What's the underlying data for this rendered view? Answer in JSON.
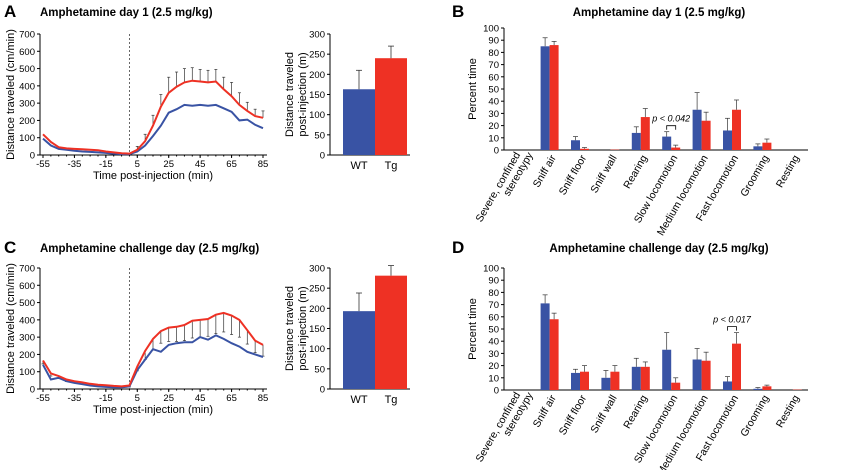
{
  "panels": {
    "A": {
      "label": "A",
      "title": "Amphetamine day 1 (2.5 mg/kg)"
    },
    "B": {
      "label": "B",
      "title": "Amphetamine day 1 (2.5 mg/kg)"
    },
    "C": {
      "label": "C",
      "title": "Amphetamine challenge day (2.5 mg/kg)"
    },
    "D": {
      "label": "D",
      "title": "Amphetamine challenge day (2.5 mg/kg)"
    }
  },
  "colors": {
    "wt": "#3953A4",
    "tg": "#EE3124",
    "axis": "#000000",
    "error": "#333333"
  },
  "chart_data": [
    {
      "id": "A-line",
      "type": "line",
      "xlabel": "Time post-injection (min)",
      "ylabel": "Distance traveled (cm/min)",
      "xlim": [
        -55,
        85
      ],
      "ylim": [
        0,
        700
      ],
      "xticks": [
        -55,
        -35,
        -15,
        5,
        25,
        45,
        65,
        85
      ],
      "xtick_labels": [
        "-55",
        "-35",
        "-15",
        "5",
        "25",
        "45",
        "65",
        "85"
      ],
      "yticks": [
        0,
        100,
        200,
        300,
        400,
        500,
        600,
        700
      ],
      "injection_x": 0,
      "x": [
        -55,
        -50,
        -45,
        -40,
        -35,
        -30,
        -25,
        -20,
        -15,
        -10,
        -5,
        0,
        5,
        10,
        15,
        20,
        25,
        30,
        35,
        40,
        45,
        50,
        55,
        60,
        65,
        70,
        75,
        80,
        85
      ],
      "series": [
        {
          "name": "WT",
          "values": [
            95,
            55,
            35,
            30,
            25,
            20,
            18,
            15,
            12,
            8,
            5,
            5,
            20,
            55,
            110,
            170,
            245,
            265,
            290,
            285,
            290,
            285,
            290,
            270,
            250,
            200,
            205,
            175,
            155
          ],
          "errors": [
            0,
            0,
            0,
            0,
            0,
            0,
            0,
            0,
            0,
            0,
            0,
            0,
            0,
            0,
            0,
            0,
            0,
            0,
            0,
            0,
            0,
            0,
            0,
            0,
            0,
            0,
            0,
            0,
            0
          ]
        },
        {
          "name": "Tg",
          "values": [
            120,
            75,
            45,
            38,
            35,
            33,
            30,
            28,
            20,
            15,
            10,
            8,
            30,
            80,
            170,
            280,
            360,
            395,
            420,
            430,
            425,
            420,
            425,
            380,
            340,
            290,
            255,
            225,
            215
          ],
          "errors": [
            0,
            0,
            0,
            0,
            0,
            0,
            0,
            0,
            0,
            0,
            0,
            0,
            20,
            40,
            60,
            70,
            90,
            85,
            80,
            75,
            70,
            70,
            70,
            70,
            80,
            70,
            50,
            40,
            40
          ]
        }
      ]
    },
    {
      "id": "A-bar",
      "type": "bar",
      "ylabel": "Distance traveled post-injection (m)",
      "ylabel_lines": [
        "Distance traveled",
        "post-injection (m)"
      ],
      "categories": [
        "WT",
        "Tg"
      ],
      "values": [
        163,
        240
      ],
      "errors": [
        47,
        30
      ],
      "ylim": [
        0,
        300
      ],
      "yticks": [
        0,
        50,
        100,
        150,
        200,
        250,
        300
      ]
    },
    {
      "id": "B-bar",
      "type": "bar",
      "ylabel": "Percent time",
      "ylim": [
        0,
        100
      ],
      "yticks": [
        0,
        10,
        20,
        30,
        40,
        50,
        60,
        70,
        80,
        90,
        100
      ],
      "categories": [
        "Severe, confined stereotypy",
        "Sniff air",
        "Sniff floor",
        "Sniff wall",
        "Rearing",
        "Slow locomotion",
        "Medium locomotion",
        "Fast locomotion",
        "Grooming",
        "Resting"
      ],
      "category_lines": [
        [
          "Severe, confined",
          "stereotypy"
        ],
        [
          "Sniff air"
        ],
        [
          "Sniff floor"
        ],
        [
          "Sniff wall"
        ],
        [
          "Rearing"
        ],
        [
          "Slow locomotion"
        ],
        [
          "Medium locomotion"
        ],
        [
          "Fast locomotion"
        ],
        [
          "Grooming"
        ],
        [
          "Resting"
        ]
      ],
      "series": [
        {
          "name": "WT",
          "values": [
            0,
            85,
            8,
            0,
            14,
            11,
            33,
            16,
            3,
            0
          ],
          "errors": [
            0,
            7,
            3,
            0,
            5,
            4,
            14,
            10,
            2,
            0
          ]
        },
        {
          "name": "Tg",
          "values": [
            0,
            86,
            1,
            0.3,
            27,
            2,
            24,
            33,
            6,
            0
          ],
          "errors": [
            0,
            3,
            1,
            0,
            7,
            2,
            7,
            8,
            3,
            0
          ]
        }
      ],
      "annotation": {
        "text": "p < 0.042",
        "category": "Slow locomotion"
      }
    },
    {
      "id": "C-line",
      "type": "line",
      "xlabel": "Time post-injection (min)",
      "ylabel": "Distance traveled (cm/min)",
      "xlim": [
        -55,
        85
      ],
      "ylim": [
        0,
        700
      ],
      "xticks": [
        -55,
        -35,
        -15,
        5,
        25,
        45,
        65,
        85
      ],
      "xtick_labels": [
        "-55",
        "-35",
        "-15",
        "5",
        "25",
        "45",
        "65",
        "85"
      ],
      "yticks": [
        0,
        100,
        200,
        300,
        400,
        500,
        600,
        700
      ],
      "injection_x": 0,
      "x": [
        -55,
        -50,
        -45,
        -40,
        -35,
        -30,
        -25,
        -20,
        -15,
        -10,
        -5,
        0,
        5,
        10,
        15,
        20,
        25,
        30,
        35,
        40,
        45,
        50,
        55,
        60,
        65,
        70,
        75,
        80,
        85
      ],
      "series": [
        {
          "name": "WT",
          "values": [
            140,
            55,
            65,
            45,
            35,
            28,
            20,
            15,
            12,
            10,
            10,
            15,
            110,
            170,
            230,
            215,
            255,
            265,
            270,
            270,
            300,
            285,
            310,
            290,
            265,
            245,
            215,
            200,
            185
          ],
          "errors": [
            0,
            0,
            0,
            0,
            0,
            0,
            0,
            0,
            0,
            0,
            0,
            0,
            0,
            0,
            0,
            0,
            0,
            0,
            0,
            0,
            0,
            0,
            0,
            0,
            0,
            0,
            0,
            0,
            0
          ]
        },
        {
          "name": "Tg",
          "values": [
            165,
            90,
            75,
            55,
            45,
            38,
            30,
            25,
            22,
            18,
            15,
            20,
            130,
            220,
            290,
            335,
            355,
            360,
            370,
            395,
            400,
            405,
            430,
            440,
            425,
            400,
            340,
            280,
            255
          ],
          "errors": [
            0,
            0,
            0,
            0,
            0,
            0,
            0,
            0,
            0,
            0,
            0,
            0,
            0,
            0,
            0,
            0,
            0,
            0,
            0,
            0,
            0,
            0,
            0,
            0,
            0,
            0,
            0,
            0,
            0
          ],
          "errors_down": [
            20,
            15,
            15,
            12,
            10,
            10,
            8,
            8,
            8,
            6,
            6,
            8,
            25,
            50,
            65,
            70,
            80,
            85,
            90,
            100,
            100,
            100,
            110,
            110,
            110,
            100,
            80,
            70,
            65
          ]
        }
      ]
    },
    {
      "id": "C-bar",
      "type": "bar",
      "ylabel": "Distance traveled post-injection (m)",
      "ylabel_lines": [
        "Distance traveled",
        "post-injection (m)"
      ],
      "categories": [
        "WT",
        "Tg"
      ],
      "values": [
        193,
        281
      ],
      "errors": [
        45,
        25
      ],
      "ylim": [
        0,
        300
      ],
      "yticks": [
        0,
        50,
        100,
        150,
        200,
        250,
        300
      ]
    },
    {
      "id": "D-bar",
      "type": "bar",
      "ylabel": "Percent time",
      "ylim": [
        0,
        100
      ],
      "yticks": [
        0,
        10,
        20,
        30,
        40,
        50,
        60,
        70,
        80,
        90,
        100
      ],
      "categories": [
        "Severe, confined stereotypy",
        "Sniff air",
        "Sniff floor",
        "Sniff wall",
        "Rearing",
        "Slow locomotion",
        "Medium locomotion",
        "Fast locomotion",
        "Grooming",
        "Resting"
      ],
      "category_lines": [
        [
          "Severe, confined",
          "stereotypy"
        ],
        [
          "Sniff air"
        ],
        [
          "Sniff floor"
        ],
        [
          "Sniff wall"
        ],
        [
          "Rearing"
        ],
        [
          "Slow locomotion"
        ],
        [
          "Medium locomotion"
        ],
        [
          "Fast locomotion"
        ],
        [
          "Grooming"
        ],
        [
          "Resting"
        ]
      ],
      "series": [
        {
          "name": "WT",
          "values": [
            0,
            71,
            14,
            10,
            19,
            33,
            25,
            7,
            1,
            0
          ],
          "errors": [
            0,
            7,
            3,
            6,
            7,
            14,
            9,
            4,
            1,
            0
          ]
        },
        {
          "name": "Tg",
          "values": [
            0,
            58,
            15,
            15,
            19,
            6,
            24,
            38,
            3,
            0.3
          ],
          "errors": [
            0,
            5,
            5,
            5,
            4,
            4,
            7,
            9,
            1,
            0
          ]
        }
      ],
      "annotation": {
        "text": "p < 0.017",
        "category": "Fast locomotion"
      }
    }
  ]
}
